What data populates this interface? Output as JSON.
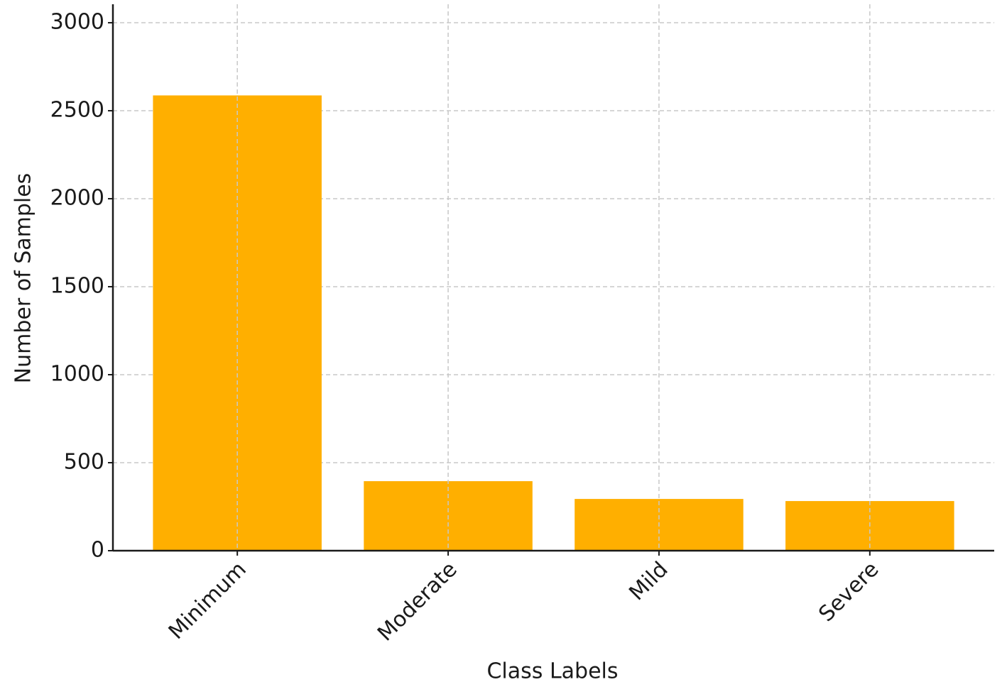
{
  "chart_data": {
    "type": "bar",
    "x_label": "Class Labels",
    "y_label": "Number of Samples",
    "categories": [
      "Minimum",
      "Moderate",
      "Mild",
      "Severe"
    ],
    "values": [
      2587,
      395,
      294,
      282
    ],
    "color": "#ffaf00",
    "ylim": [
      0,
      3105
    ],
    "yticks": [
      0,
      500,
      1000,
      1500,
      2000,
      2500,
      3000
    ],
    "grid": true
  }
}
